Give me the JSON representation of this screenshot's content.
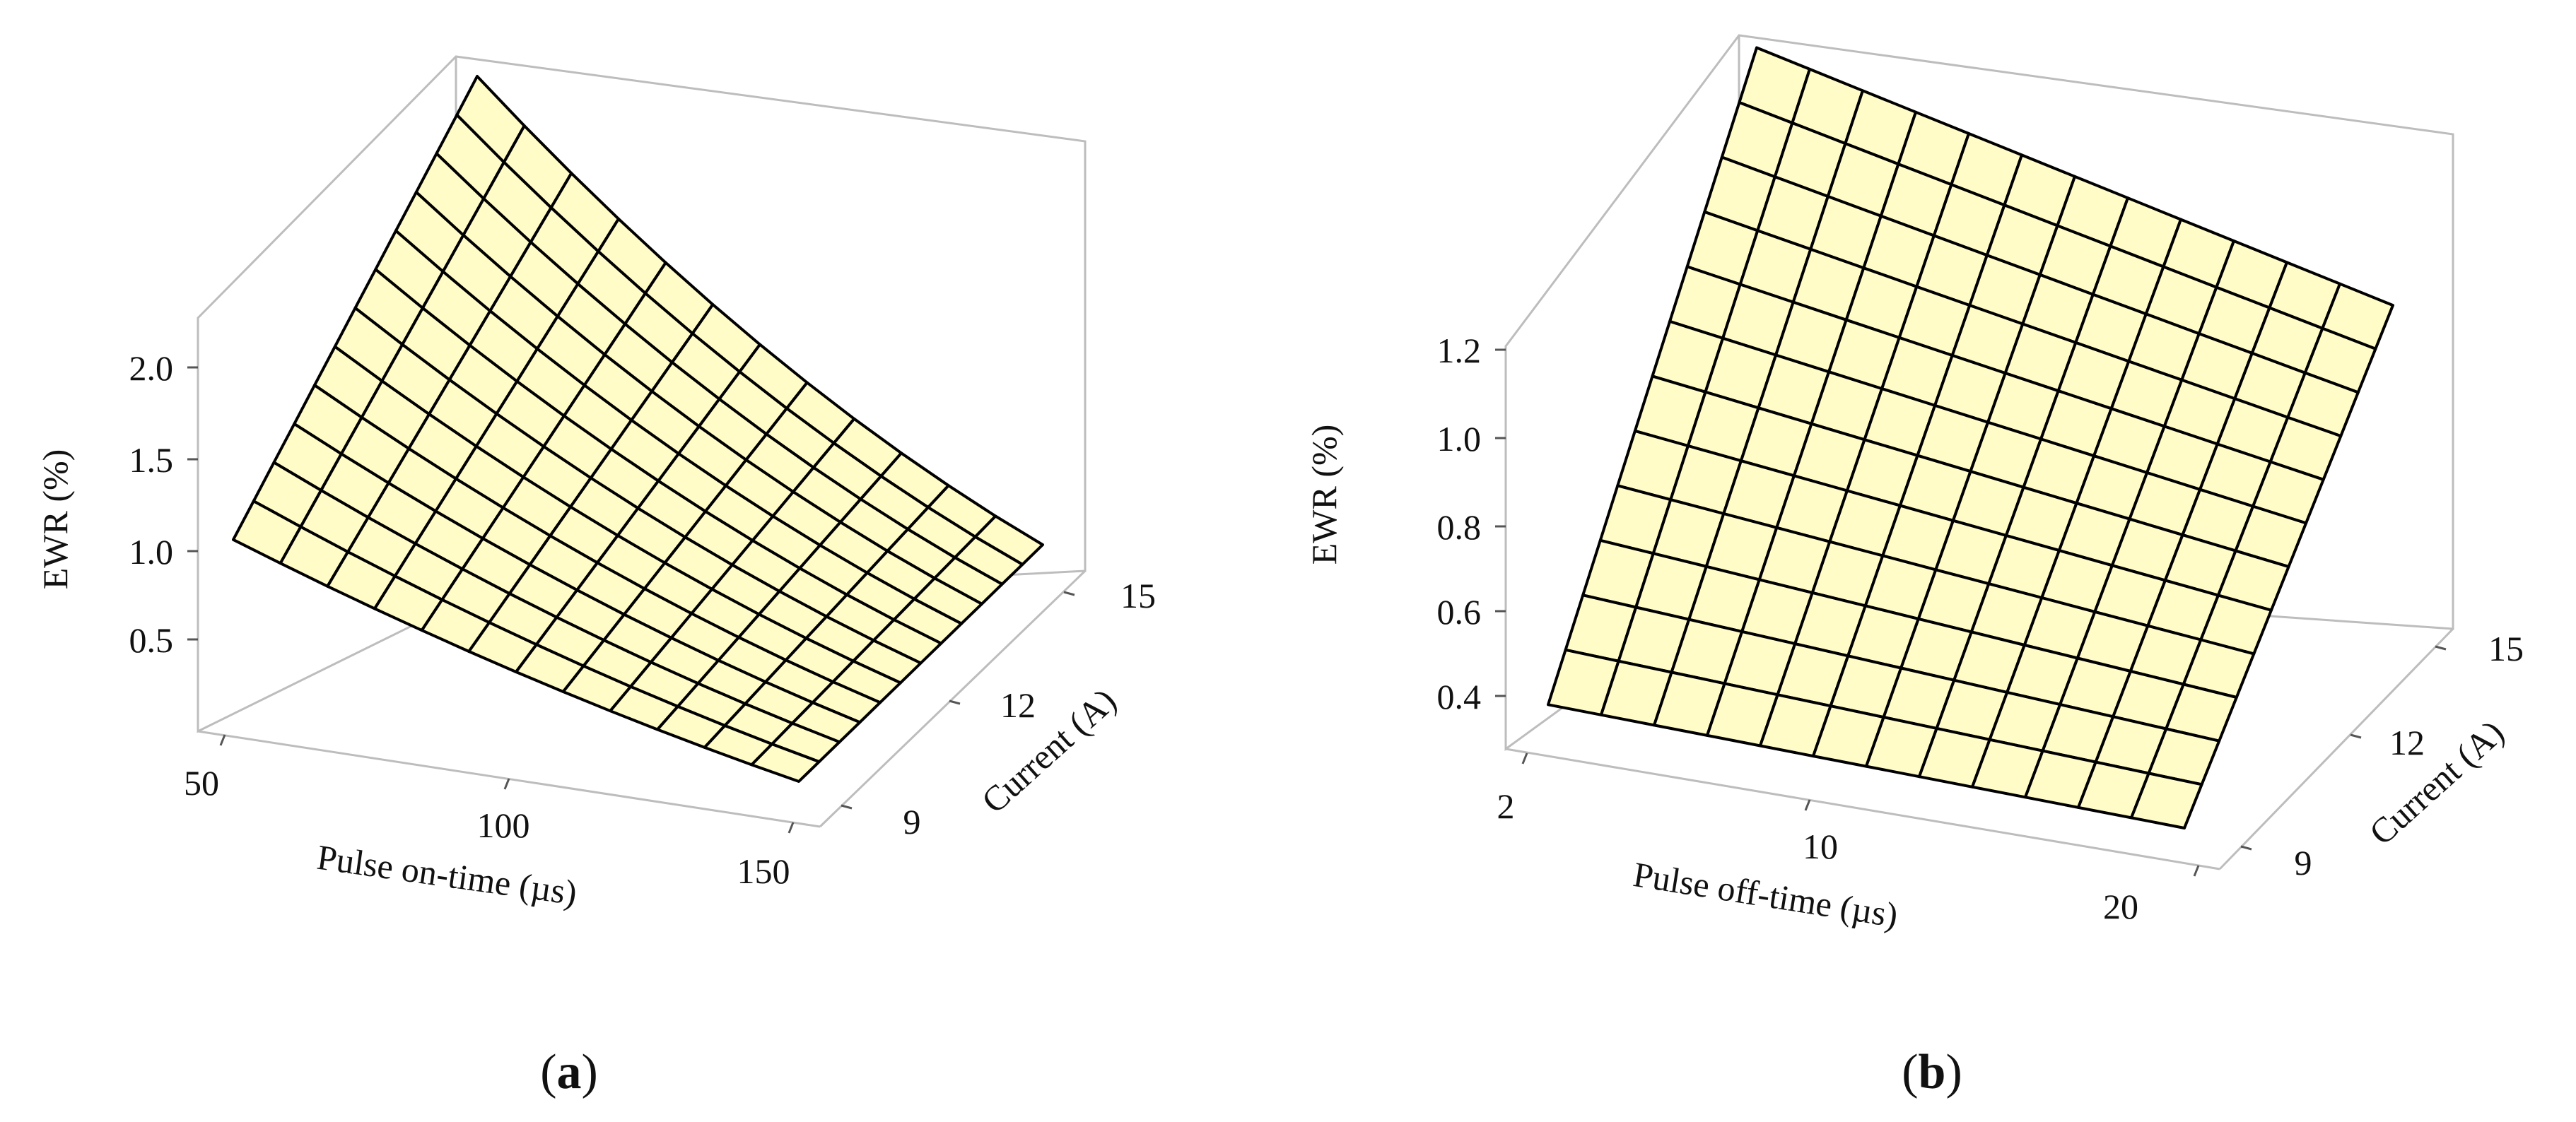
{
  "colors": {
    "surface": "#fffcc8",
    "mesh": "#000000",
    "frame": "#bdbdbd"
  },
  "chart_data": [
    {
      "type": "surface",
      "panel_label": "a",
      "xlabel": "Pulse on-time (µs)",
      "ylabel": "Current (A)",
      "zlabel": "EWR (%)",
      "x_ticks": [
        "50",
        "100",
        "150"
      ],
      "y_ticks": [
        "9",
        "12",
        "15"
      ],
      "z_ticks": [
        "0.5",
        "1.0",
        "1.5",
        "2.0"
      ],
      "xlim": [
        50,
        150
      ],
      "ylim": [
        9,
        15
      ],
      "zlim": [
        0,
        2.2
      ],
      "grid_lines": 12,
      "corner_values": {
        "x_low_y_low": 1.05,
        "x_low_y_high": 2.3,
        "x_high_y_low": 0.2,
        "x_high_y_high": 0.2
      },
      "curvature": 0.5
    },
    {
      "type": "surface",
      "panel_label": "b",
      "xlabel": "Pulse off-time (µs)",
      "ylabel": "Current (A)",
      "zlabel": "EWR (%)",
      "x_ticks": [
        "2",
        "10",
        "20"
      ],
      "y_ticks": [
        "9",
        "12",
        "15"
      ],
      "z_ticks": [
        "0.4",
        "0.6",
        "0.8",
        "1.0",
        "1.2"
      ],
      "xlim": [
        2,
        20
      ],
      "ylim": [
        9,
        15
      ],
      "zlim": [
        0.3,
        1.3
      ],
      "grid_lines": 12,
      "corner_values": {
        "x_low_y_low": 0.38,
        "x_low_y_high": 1.4,
        "x_high_y_low": 0.32,
        "x_high_y_high": 1.03
      },
      "curvature": 0
    }
  ]
}
